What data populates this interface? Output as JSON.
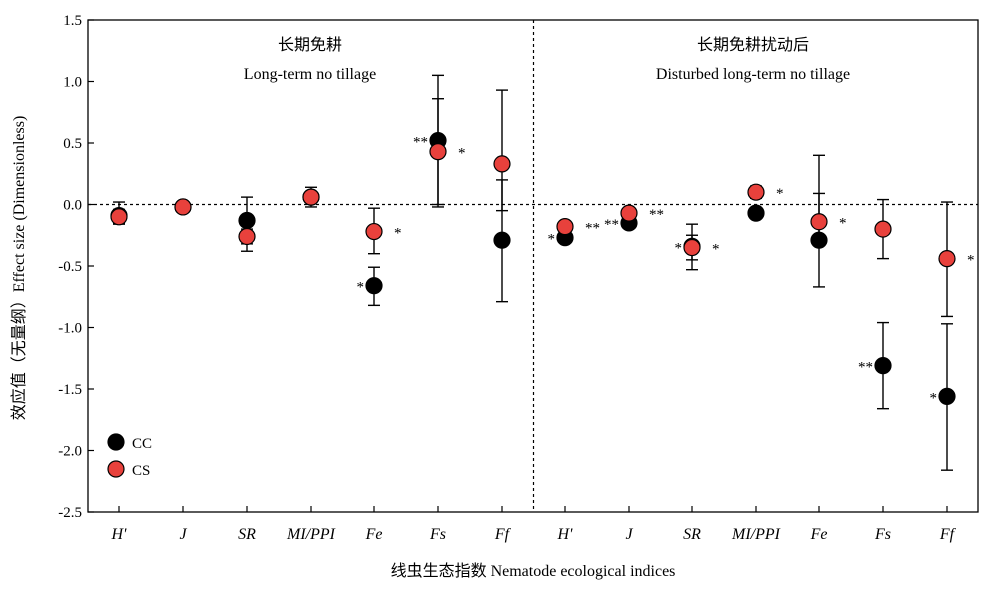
{
  "chart_data": {
    "type": "scatter",
    "xlabel": "线虫生态指数 Nematode ecological indices",
    "ylabel": "效应值（无量纲）Effect size (Dimensionless)",
    "ylim": [
      -2.5,
      1.5
    ],
    "yticks": [
      "1.5",
      "1.0",
      "0.5",
      "0.0",
      "-0.5",
      "-1.0",
      "-1.5",
      "-2.0",
      "-2.5"
    ],
    "ytick_values": [
      1.5,
      1.0,
      0.5,
      0.0,
      -0.5,
      -1.0,
      -1.5,
      -2.0,
      -2.5
    ],
    "categories": [
      "H'",
      "J",
      "SR",
      "MI/PPI",
      "Fe",
      "Fs",
      "Ff",
      "H'",
      "J",
      "SR",
      "MI/PPI",
      "Fe",
      "Fs",
      "Ff"
    ],
    "panels": [
      {
        "title_cn": "长期免耕",
        "title_en": "Long-term no tillage"
      },
      {
        "title_cn": "长期免耕扰动后",
        "title_en": "Disturbed long-term no tillage"
      }
    ],
    "legend": {
      "position": "bottom-left",
      "items": [
        "CC",
        "CS"
      ]
    },
    "series": [
      {
        "name": "CC",
        "color": "#000000",
        "values": [
          -0.09,
          -0.02,
          -0.13,
          0.06,
          -0.66,
          0.52,
          -0.29,
          -0.27,
          -0.15,
          -0.34,
          -0.07,
          -0.29,
          -1.31,
          -1.56
        ],
        "err_low": [
          -0.15,
          -0.05,
          -0.38,
          -0.02,
          -0.82,
          0.0,
          -0.79,
          -0.29,
          -0.17,
          -0.53,
          -0.09,
          -0.67,
          -1.66,
          -2.16
        ],
        "err_high": [
          0.02,
          0.0,
          0.06,
          0.14,
          -0.51,
          1.05,
          0.2,
          -0.24,
          -0.12,
          -0.16,
          -0.05,
          0.09,
          -0.96,
          -0.97
        ],
        "significance": [
          "",
          "",
          "",
          "",
          "*",
          "**",
          "",
          "*",
          "**",
          "*",
          "",
          "",
          "**",
          "*"
        ]
      },
      {
        "name": "CS",
        "color": "#e8413c",
        "values": [
          -0.1,
          -0.02,
          -0.26,
          0.06,
          -0.22,
          0.43,
          0.33,
          -0.18,
          -0.07,
          -0.35,
          0.1,
          -0.14,
          -0.2,
          -0.44
        ],
        "err_low": [
          -0.16,
          -0.04,
          -0.32,
          0.02,
          -0.4,
          -0.02,
          -0.05,
          -0.2,
          -0.09,
          -0.45,
          0.05,
          -0.3,
          -0.44,
          -0.91
        ],
        "err_high": [
          -0.04,
          0.0,
          -0.2,
          0.1,
          -0.03,
          0.86,
          0.93,
          -0.15,
          -0.05,
          -0.25,
          0.15,
          0.4,
          0.04,
          0.02
        ],
        "significance": [
          "",
          "",
          "",
          "",
          "*",
          "*",
          "",
          "**",
          "**",
          "*",
          "*",
          "*",
          "",
          "*"
        ]
      }
    ],
    "reference_line": 0.0,
    "grid": false
  }
}
